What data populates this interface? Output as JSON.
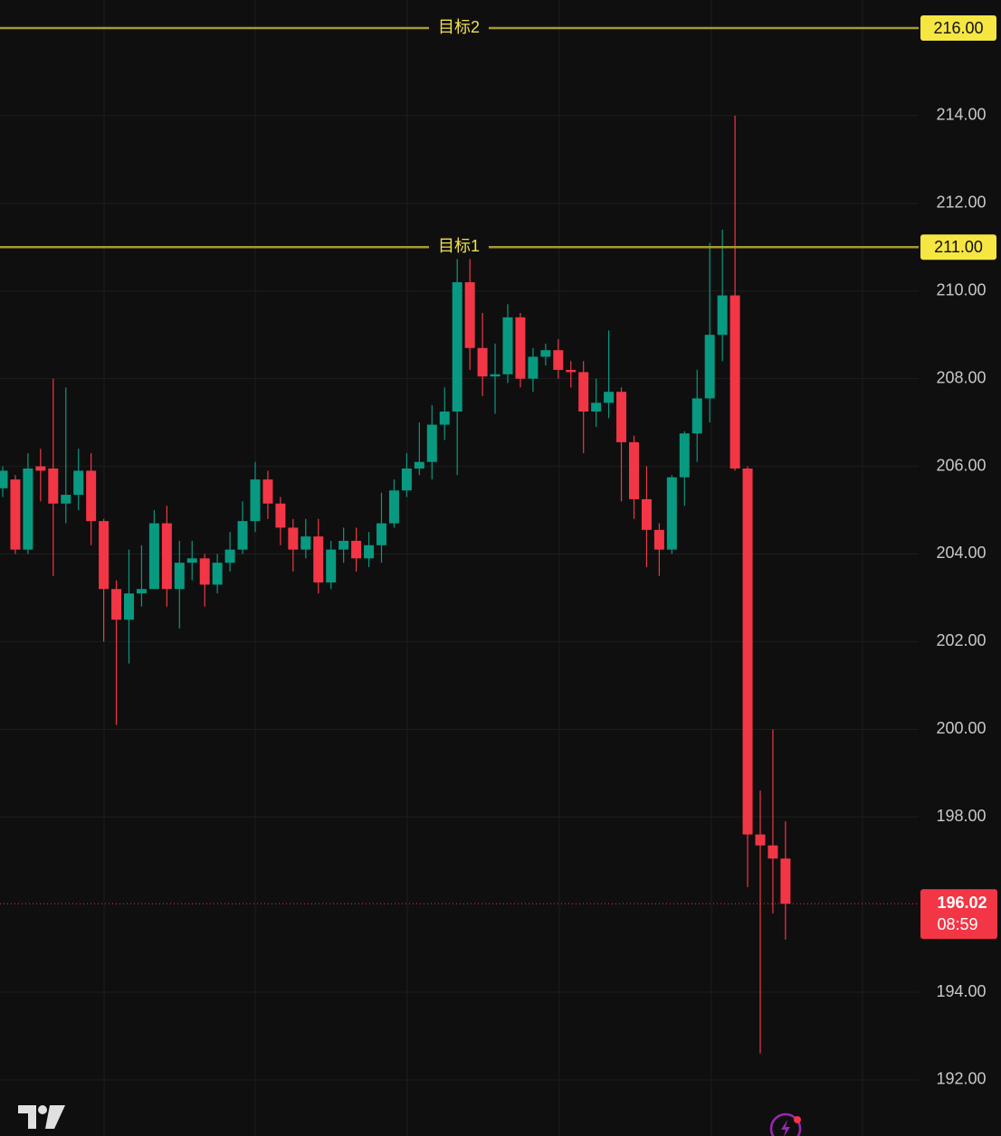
{
  "chart_data": {
    "type": "candlestick",
    "up_color": "#089981",
    "down_color": "#f23645",
    "open": [
      205.5,
      205.7,
      204.1,
      206.0,
      205.95,
      205.15,
      205.35,
      205.9,
      204.75,
      203.2,
      202.5,
      203.1,
      203.2,
      204.7,
      203.2,
      203.8,
      203.9,
      203.3,
      203.8,
      204.1,
      204.75,
      205.7,
      205.15,
      204.6,
      204.1,
      204.4,
      203.35,
      204.1,
      204.3,
      203.9,
      204.2,
      204.7,
      205.45,
      205.95,
      206.1,
      206.95,
      207.25,
      210.2,
      208.7,
      208.05,
      208.1,
      209.4,
      208.0,
      208.5,
      208.65,
      208.2,
      208.15,
      207.25,
      207.45,
      207.7,
      206.55,
      205.25,
      204.55,
      204.1,
      205.75,
      206.75,
      207.55,
      209.0,
      209.9,
      205.95,
      197.6,
      197.35,
      197.05
    ],
    "high": [
      206.0,
      205.8,
      206.3,
      206.4,
      208.0,
      207.8,
      206.4,
      206.3,
      204.8,
      203.4,
      204.1,
      204.2,
      205.0,
      205.1,
      204.3,
      204.3,
      204.0,
      204.0,
      204.5,
      205.2,
      206.1,
      205.9,
      205.3,
      204.8,
      204.8,
      204.8,
      204.3,
      204.6,
      204.6,
      204.5,
      205.4,
      205.7,
      206.3,
      207.0,
      207.4,
      207.8,
      211.2,
      211.2,
      209.5,
      208.8,
      209.7,
      209.5,
      208.7,
      208.8,
      208.9,
      208.4,
      208.4,
      208.0,
      209.1,
      207.8,
      206.7,
      206.0,
      204.7,
      205.8,
      206.8,
      208.2,
      211.1,
      211.4,
      214.0,
      206.0,
      198.6,
      200.0,
      197.9
    ],
    "low": [
      205.3,
      204.0,
      204.0,
      205.2,
      203.5,
      204.7,
      205.0,
      204.2,
      202.0,
      200.1,
      201.5,
      202.8,
      203.2,
      202.8,
      202.3,
      203.4,
      202.8,
      203.1,
      203.6,
      204.0,
      204.5,
      204.8,
      204.2,
      203.6,
      203.9,
      203.1,
      203.2,
      203.8,
      203.6,
      203.7,
      203.8,
      204.6,
      205.3,
      205.8,
      205.7,
      206.6,
      205.8,
      208.2,
      207.6,
      207.2,
      207.9,
      207.8,
      207.7,
      208.3,
      208.0,
      207.8,
      206.3,
      206.9,
      207.1,
      205.2,
      204.8,
      203.7,
      203.5,
      204.0,
      205.1,
      206.1,
      207.0,
      208.4,
      205.9,
      196.4,
      192.6,
      195.8,
      195.2
    ],
    "close": [
      205.9,
      204.1,
      205.95,
      205.9,
      205.15,
      205.35,
      205.9,
      204.75,
      203.2,
      202.5,
      203.1,
      203.2,
      204.7,
      203.2,
      203.8,
      203.9,
      203.3,
      203.8,
      204.1,
      204.75,
      205.7,
      205.15,
      204.6,
      204.1,
      204.4,
      203.35,
      204.1,
      204.3,
      203.9,
      204.2,
      204.7,
      205.45,
      205.95,
      206.1,
      206.95,
      207.25,
      210.2,
      208.7,
      208.05,
      208.1,
      209.4,
      208.0,
      208.5,
      208.65,
      208.2,
      208.15,
      207.25,
      207.45,
      207.7,
      206.55,
      205.25,
      204.55,
      204.1,
      205.75,
      206.75,
      207.55,
      209.0,
      209.9,
      205.95,
      197.6,
      197.35,
      197.05,
      196.02
    ],
    "ylim": [
      190.72,
      216.64
    ],
    "yticks": [
      {
        "value": 192,
        "label": "192.00"
      },
      {
        "value": 194,
        "label": "194.00"
      },
      {
        "value": 198,
        "label": "198.00"
      },
      {
        "value": 200,
        "label": "200.00"
      },
      {
        "value": 202,
        "label": "202.00"
      },
      {
        "value": 204,
        "label": "204.00"
      },
      {
        "value": 206,
        "label": "206.00"
      },
      {
        "value": 208,
        "label": "208.00"
      },
      {
        "value": 210,
        "label": "210.00"
      },
      {
        "value": 212,
        "label": "212.00"
      },
      {
        "value": 214,
        "label": "214.00"
      }
    ],
    "grid": true,
    "levels": [
      {
        "name": "目标2",
        "value": 216,
        "label": "216.00",
        "color": "#a89a2c"
      },
      {
        "name": "目标1",
        "value": 211,
        "label": "211.00",
        "color": "#a89a2c"
      }
    ],
    "last_price": {
      "value": 196.02,
      "countdown": "08:59",
      "color": "#f23645"
    }
  }
}
